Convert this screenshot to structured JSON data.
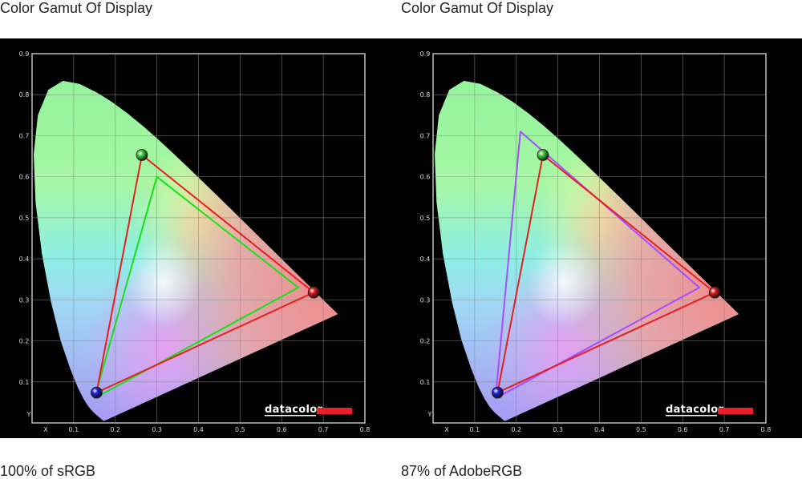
{
  "chart_data": [
    {
      "type": "scatter",
      "title": "Color Gamut Of Display",
      "caption": "100% of sRGB",
      "xlabel": "X",
      "ylabel": "Y",
      "xlim": [
        0,
        0.8
      ],
      "ylim": [
        0,
        0.9
      ],
      "x_ticks": [
        0.1,
        0.2,
        0.3,
        0.4,
        0.5,
        0.6,
        0.7,
        0.8
      ],
      "y_ticks": [
        0.1,
        0.2,
        0.3,
        0.4,
        0.5,
        0.6,
        0.7,
        0.8,
        0.9
      ],
      "grid": true,
      "logo": "datacolor",
      "series": [
        {
          "color": "#e41f1f",
          "points": [
            [
              0.264,
              0.653
            ],
            [
              0.677,
              0.318
            ],
            [
              0.155,
              0.074
            ]
          ]
        },
        {
          "color": "#18e018",
          "points": [
            [
              0.3,
              0.6
            ],
            [
              0.64,
              0.33
            ],
            [
              0.15,
              0.06
            ]
          ]
        }
      ]
    },
    {
      "type": "scatter",
      "title": "Color Gamut Of Display",
      "caption": "87% of AdobeRGB",
      "xlabel": "X",
      "ylabel": "Y",
      "xlim": [
        0,
        0.8
      ],
      "ylim": [
        0,
        0.9
      ],
      "x_ticks": [
        0.1,
        0.2,
        0.3,
        0.4,
        0.5,
        0.6,
        0.7,
        0.8
      ],
      "y_ticks": [
        0.1,
        0.2,
        0.3,
        0.4,
        0.5,
        0.6,
        0.7,
        0.8,
        0.9
      ],
      "grid": true,
      "logo": "datacolor",
      "series": [
        {
          "color": "#e41f1f",
          "points": [
            [
              0.264,
              0.653
            ],
            [
              0.677,
              0.318
            ],
            [
              0.155,
              0.074
            ]
          ]
        },
        {
          "color": "#a64dff",
          "points": [
            [
              0.21,
              0.71
            ],
            [
              0.64,
              0.33
            ],
            [
              0.15,
              0.06
            ]
          ]
        }
      ]
    }
  ]
}
